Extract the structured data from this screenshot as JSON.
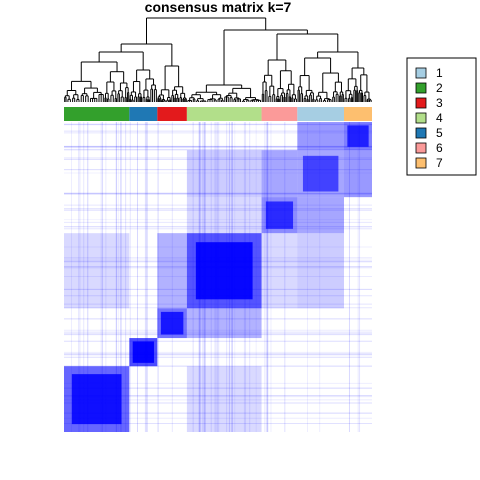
{
  "chart_data": {
    "type": "heatmap",
    "title": "consensus matrix k=7",
    "colors": {
      "high": "#0000ff",
      "low": "#ffffff",
      "dendrogram": "#000000",
      "legend_border": "#000000"
    },
    "legend_placement": "right",
    "legend": [
      {
        "label": "1",
        "color": "#a6cee3"
      },
      {
        "label": "2",
        "color": "#33a02c"
      },
      {
        "label": "3",
        "color": "#e31a1c"
      },
      {
        "label": "4",
        "color": "#b2df8a"
      },
      {
        "label": "5",
        "color": "#1f78b4"
      },
      {
        "label": "6",
        "color": "#fb9a99"
      },
      {
        "label": "7",
        "color": "#fdbf6f"
      }
    ],
    "class_order": [
      "2",
      "5",
      "3",
      "4",
      "6",
      "1",
      "7"
    ],
    "class_proportions": [
      0.21,
      0.09,
      0.095,
      0.24,
      0.115,
      0.15,
      0.09
    ],
    "within_cluster_consensus": [
      0.85,
      0.95,
      0.8,
      0.92,
      0.7,
      0.6,
      0.75
    ],
    "between_cluster_links": [
      {
        "from": "2",
        "to": "4",
        "value": 0.15
      },
      {
        "from": "3",
        "to": "4",
        "value": 0.3
      },
      {
        "from": "4",
        "to": "1",
        "value": 0.2
      },
      {
        "from": "4",
        "to": "6",
        "value": 0.15
      },
      {
        "from": "6",
        "to": "1",
        "value": 0.35
      },
      {
        "from": "1",
        "to": "7",
        "value": 0.4
      }
    ]
  }
}
